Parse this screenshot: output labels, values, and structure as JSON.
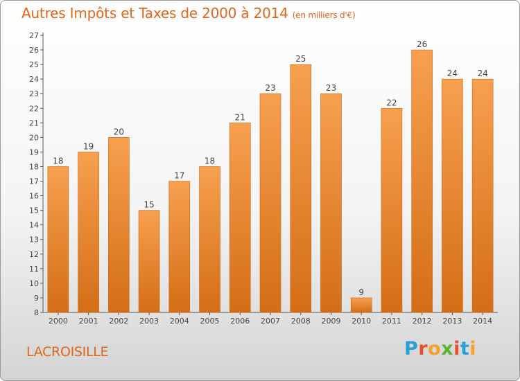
{
  "header": {
    "title": "Autres Impôts et Taxes de 2000 à 2014",
    "subtitle": "(en milliers d'€)"
  },
  "footer": {
    "city": "LACROISILLE",
    "logo_text": "Proxiti"
  },
  "logo_letter_colors": [
    "#2a9fd6",
    "#e8502d",
    "#f4a32a",
    "#5bb533",
    "#e8502d",
    "#2a9fd6",
    "#f4a32a"
  ],
  "colors": {
    "bar_light": "#f7a04f",
    "bar_dark": "#d46e16",
    "bar_stroke": "#c8661a",
    "text": "#e0661c"
  },
  "chart_data": {
    "type": "bar",
    "categories": [
      "2000",
      "2001",
      "2002",
      "2003",
      "2004",
      "2005",
      "2006",
      "2007",
      "2008",
      "2009",
      "2010",
      "2011",
      "2012",
      "2013",
      "2014"
    ],
    "values": [
      18,
      19,
      20,
      15,
      17,
      18,
      21,
      23,
      25,
      23,
      9,
      22,
      26,
      24,
      24
    ],
    "title": "Autres Impôts et Taxes de 2000 à 2014",
    "ylim": [
      8,
      27
    ],
    "yticks": [
      8,
      9,
      10,
      11,
      12,
      13,
      14,
      15,
      16,
      17,
      18,
      19,
      20,
      21,
      22,
      23,
      24,
      25,
      26,
      27
    ],
    "grid": false
  }
}
